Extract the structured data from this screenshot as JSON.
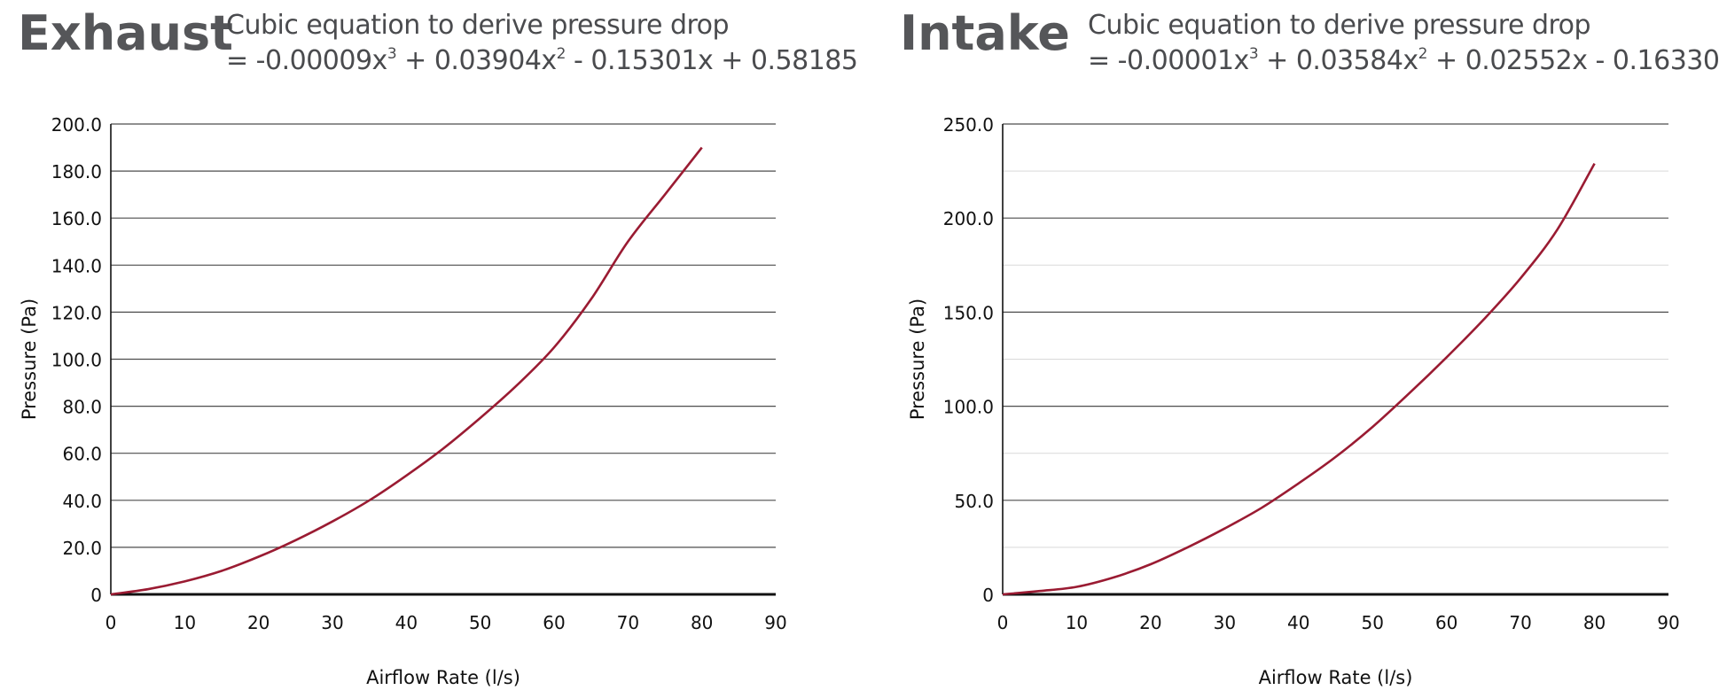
{
  "charts": [
    {
      "heading": "Exhaust",
      "equation": {
        "line1": "Cubic equation to derive pressure drop",
        "prefix": "= -0.00009x",
        "exp1": "3",
        "mid": " + 0.03904x",
        "exp2": "2",
        "suffix": " - 0.15301x + 0.58185"
      }
    },
    {
      "heading": "Intake",
      "equation": {
        "line1": "Cubic equation to derive pressure drop",
        "prefix": "= -0.00001x",
        "exp1": "3",
        "mid": " + 0.03584x",
        "exp2": "2",
        "suffix": " + 0.02552x - 0.16330"
      }
    }
  ],
  "chart_data": [
    {
      "type": "line",
      "title": "Exhaust",
      "xlabel": "Airflow Rate (l/s)",
      "ylabel": "Pressure (Pa)",
      "xlim": [
        0,
        90
      ],
      "ylim": [
        0,
        200
      ],
      "xticks": [
        "0",
        "10",
        "20",
        "30",
        "40",
        "50",
        "60",
        "70",
        "80",
        "90"
      ],
      "yticks": [
        "0",
        "20.0",
        "40.0",
        "60.0",
        "80.0",
        "100.0",
        "120.0",
        "140.0",
        "160.0",
        "180.0",
        "200.0"
      ],
      "grid": "horizontal",
      "series": [
        {
          "name": "Exhaust",
          "color": "#9a1b32",
          "x": [
            0,
            5,
            10,
            15,
            20,
            25,
            30,
            35,
            40,
            45,
            50,
            55,
            60,
            65,
            70,
            75,
            80
          ],
          "y": [
            0,
            2.2,
            5.5,
            10,
            16,
            23,
            31,
            40,
            50.5,
            62,
            75,
            89,
            105,
            125.5,
            150,
            170,
            190
          ]
        }
      ]
    },
    {
      "type": "line",
      "title": "Intake",
      "xlabel": "Airflow Rate (l/s)",
      "ylabel": "Pressure (Pa)",
      "xlim": [
        0,
        90
      ],
      "ylim": [
        0,
        250
      ],
      "xticks": [
        "0",
        "10",
        "20",
        "30",
        "40",
        "50",
        "60",
        "70",
        "80",
        "90"
      ],
      "yticks": [
        "0",
        "50.0",
        "100.0",
        "150.0",
        "200.0",
        "250.0"
      ],
      "grid": "horizontal-with-minor",
      "series": [
        {
          "name": "Intake",
          "color": "#9a1b32",
          "x": [
            0,
            5,
            10,
            15,
            20,
            25,
            30,
            35,
            40,
            45,
            50,
            55,
            60,
            65,
            70,
            75,
            80
          ],
          "y": [
            0,
            1.8,
            4,
            9,
            16,
            25,
            35,
            46,
            59,
            73,
            89,
            107,
            126,
            146,
            168,
            194,
            229
          ]
        }
      ]
    }
  ]
}
